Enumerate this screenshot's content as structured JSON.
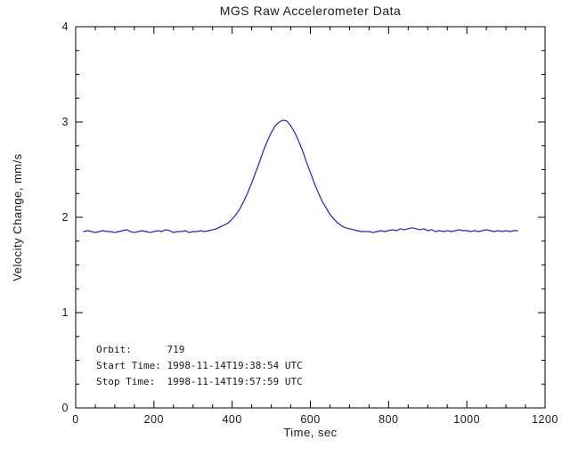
{
  "chart_data": {
    "type": "line",
    "title": "MGS Raw Accelerometer Data",
    "xlabel": "Time, sec",
    "ylabel": "Velocity Change, mm/s",
    "xlim": [
      0,
      1200
    ],
    "ylim": [
      0,
      4
    ],
    "x_ticks": [
      0,
      200,
      400,
      600,
      800,
      1000,
      1200
    ],
    "y_ticks": [
      0,
      1,
      2,
      3,
      4
    ],
    "x_minor_step": 50,
    "y_minor_step": 0.25,
    "grid": "off",
    "legend": "none",
    "line_color": "#2121c8",
    "axis_color": "#000000",
    "series": [
      {
        "name": "velocity_change",
        "x": [
          20,
          30,
          40,
          50,
          60,
          70,
          80,
          90,
          100,
          110,
          120,
          130,
          140,
          150,
          160,
          170,
          180,
          190,
          200,
          210,
          220,
          230,
          240,
          250,
          260,
          270,
          280,
          290,
          300,
          310,
          320,
          330,
          340,
          350,
          360,
          370,
          380,
          390,
          400,
          410,
          420,
          430,
          440,
          450,
          460,
          470,
          480,
          490,
          500,
          510,
          520,
          530,
          540,
          550,
          560,
          570,
          580,
          590,
          600,
          610,
          620,
          630,
          640,
          650,
          660,
          670,
          680,
          690,
          700,
          710,
          720,
          730,
          740,
          750,
          760,
          770,
          780,
          790,
          800,
          810,
          820,
          830,
          840,
          850,
          860,
          870,
          880,
          890,
          900,
          910,
          920,
          930,
          940,
          950,
          960,
          970,
          980,
          990,
          1000,
          1010,
          1020,
          1030,
          1040,
          1050,
          1060,
          1070,
          1080,
          1090,
          1100,
          1110,
          1120,
          1130
        ],
        "y": [
          1.85,
          1.86,
          1.85,
          1.84,
          1.85,
          1.86,
          1.85,
          1.85,
          1.84,
          1.85,
          1.86,
          1.87,
          1.85,
          1.84,
          1.85,
          1.86,
          1.85,
          1.84,
          1.85,
          1.86,
          1.85,
          1.87,
          1.86,
          1.84,
          1.85,
          1.85,
          1.86,
          1.84,
          1.85,
          1.85,
          1.86,
          1.85,
          1.86,
          1.87,
          1.88,
          1.9,
          1.92,
          1.94,
          1.98,
          2.03,
          2.09,
          2.17,
          2.26,
          2.36,
          2.47,
          2.58,
          2.7,
          2.8,
          2.89,
          2.96,
          3.0,
          3.02,
          3.01,
          2.96,
          2.89,
          2.8,
          2.7,
          2.58,
          2.47,
          2.36,
          2.26,
          2.17,
          2.1,
          2.03,
          1.98,
          1.94,
          1.91,
          1.89,
          1.88,
          1.87,
          1.86,
          1.85,
          1.85,
          1.85,
          1.84,
          1.85,
          1.86,
          1.85,
          1.86,
          1.87,
          1.86,
          1.88,
          1.87,
          1.88,
          1.89,
          1.88,
          1.87,
          1.88,
          1.86,
          1.87,
          1.85,
          1.86,
          1.85,
          1.86,
          1.85,
          1.86,
          1.87,
          1.86,
          1.86,
          1.85,
          1.86,
          1.85,
          1.86,
          1.87,
          1.86,
          1.85,
          1.86,
          1.85,
          1.86,
          1.85,
          1.86,
          1.86
        ]
      }
    ],
    "annotations": [
      "Orbit:      719",
      "Start Time: 1998-11-14T19:38:54 UTC",
      "Stop Time:  1998-11-14T19:57:59 UTC"
    ],
    "peak": {
      "time_sec": 530,
      "velocity_change_mm_s": 3.02
    },
    "baseline_mm_s": 1.85
  }
}
